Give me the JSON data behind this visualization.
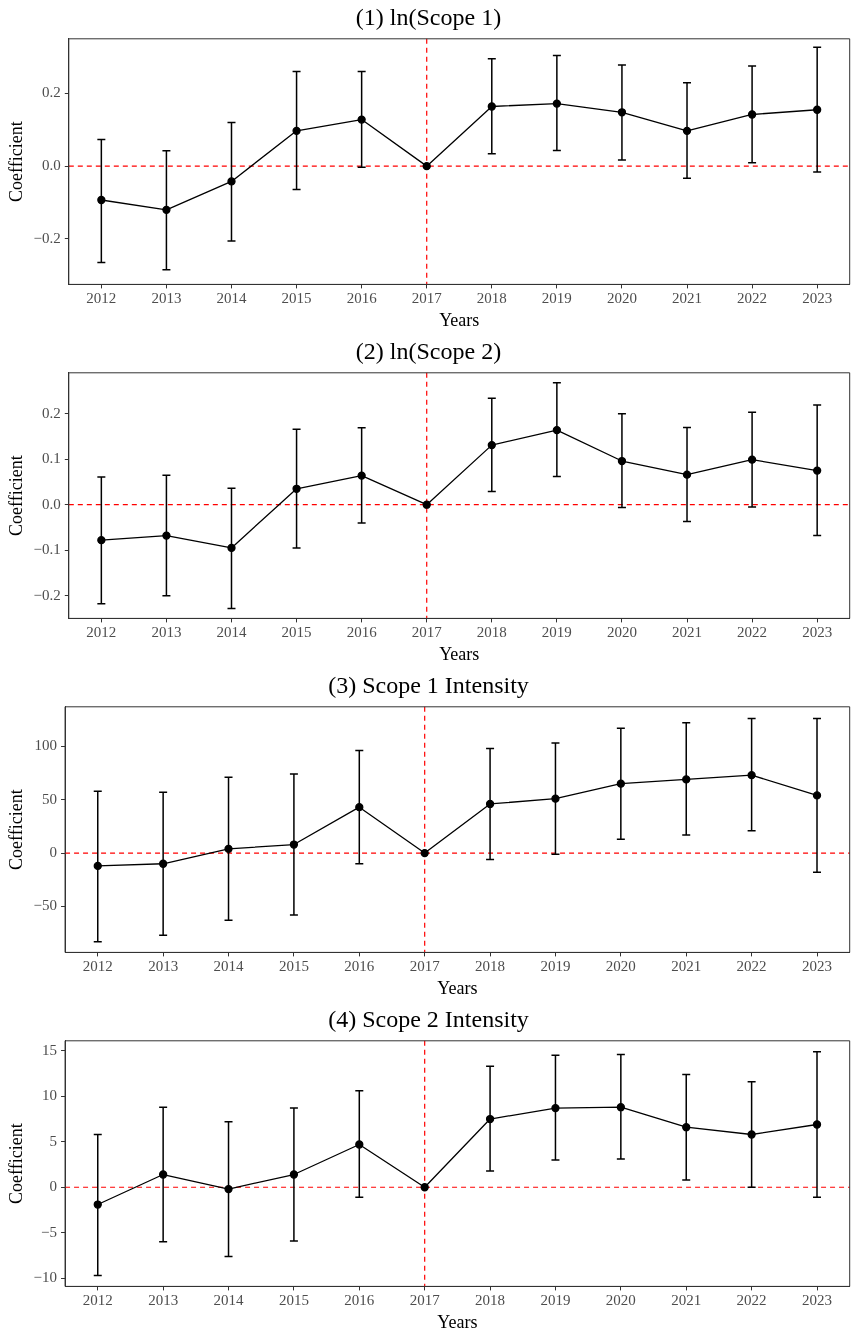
{
  "chart_data": [
    {
      "type": "line",
      "title": "(1) ln(Scope 1)",
      "xlabel": "Years",
      "ylabel": "Coefficient",
      "categories": [
        "2012",
        "2013",
        "2014",
        "2015",
        "2016",
        "2017",
        "2018",
        "2019",
        "2020",
        "2021",
        "2022",
        "2023"
      ],
      "series": [
        {
          "color": "#000000",
          "values": [
            -0.093,
            -0.12,
            -0.042,
            0.097,
            0.128,
            0,
            0.164,
            0.172,
            0.148,
            0.097,
            0.142,
            0.155
          ],
          "errors": [
            [
              -0.265,
              0.073
            ],
            [
              -0.285,
              0.042
            ],
            [
              -0.206,
              0.12
            ],
            [
              -0.064,
              0.26
            ],
            [
              -0.003,
              0.26
            ],
            null,
            [
              0.034,
              0.295
            ],
            [
              0.043,
              0.304
            ],
            [
              0.017,
              0.278
            ],
            [
              -0.033,
              0.229
            ],
            [
              0.009,
              0.275
            ],
            [
              -0.016,
              0.327
            ]
          ]
        }
      ],
      "ylim": [
        -0.325,
        0.35
      ],
      "yticks": [
        {
          "value": -0.2,
          "label": "−0.2"
        },
        {
          "value": 0,
          "label": "0.0"
        },
        0.2
      ],
      "ref_lines": [
        {
          "axis": "y",
          "value": 0,
          "color": "#ff0000",
          "line_style": "dashed"
        },
        {
          "axis": "x",
          "value": "2017",
          "color": "#ff0000",
          "line_style": "dashed"
        }
      ],
      "grid": false,
      "legend": false,
      "marker": "circle",
      "line_style": "solid"
    },
    {
      "type": "line",
      "title": "(2) ln(Scope 2)",
      "xlabel": "Years",
      "ylabel": "Coefficient",
      "categories": [
        "2012",
        "2013",
        "2014",
        "2015",
        "2016",
        "2017",
        "2018",
        "2019",
        "2020",
        "2021",
        "2022",
        "2023"
      ],
      "series": [
        {
          "color": "#000000",
          "values": [
            -0.078,
            -0.068,
            -0.095,
            0.035,
            0.064,
            0,
            0.131,
            0.164,
            0.096,
            0.066,
            0.099,
            0.075
          ],
          "errors": [
            [
              -0.218,
              0.061
            ],
            [
              -0.2,
              0.065
            ],
            [
              -0.228,
              0.036
            ],
            [
              -0.095,
              0.166
            ],
            [
              -0.04,
              0.169
            ],
            null,
            [
              0.029,
              0.234
            ],
            [
              0.062,
              0.268
            ],
            [
              -0.006,
              0.2
            ],
            [
              -0.037,
              0.17
            ],
            [
              -0.005,
              0.203
            ],
            [
              -0.068,
              0.219
            ]
          ]
        }
      ],
      "ylim": [
        -0.25,
        0.29
      ],
      "yticks": [
        {
          "value": -0.2,
          "label": "−0.2"
        },
        {
          "value": -0.1,
          "label": "−0.1"
        },
        {
          "value": 0,
          "label": "0.0"
        },
        0.1,
        0.2
      ],
      "ref_lines": [
        {
          "axis": "y",
          "value": 0,
          "color": "#ff0000",
          "line_style": "dashed"
        },
        {
          "axis": "x",
          "value": "2017",
          "color": "#ff0000",
          "line_style": "dashed"
        }
      ],
      "grid": false,
      "legend": false,
      "marker": "circle",
      "line_style": "solid"
    },
    {
      "type": "line",
      "title": "(3) Scope 1 Intensity",
      "xlabel": "Years",
      "ylabel": "Coefficient",
      "categories": [
        "2012",
        "2013",
        "2014",
        "2015",
        "2016",
        "2017",
        "2018",
        "2019",
        "2020",
        "2021",
        "2022",
        "2023"
      ],
      "series": [
        {
          "color": "#000000",
          "values": [
            -12,
            -10,
            4,
            8,
            43,
            0,
            46,
            51,
            65,
            69,
            73,
            54
          ],
          "errors": [
            [
              -83,
              58
            ],
            [
              -77,
              57
            ],
            [
              -63,
              71
            ],
            [
              -58,
              74
            ],
            [
              -10,
              96
            ],
            null,
            [
              -6,
              98
            ],
            [
              -1,
              103
            ],
            [
              13,
              117
            ],
            [
              17,
              122
            ],
            [
              21,
              126
            ],
            [
              -18,
              126
            ]
          ]
        }
      ],
      "ylim": [
        -93,
        137
      ],
      "yticks": [
        {
          "value": -50,
          "label": "−50"
        },
        0,
        50,
        100
      ],
      "ref_lines": [
        {
          "axis": "y",
          "value": 0,
          "color": "#ff0000",
          "line_style": "dashed"
        },
        {
          "axis": "x",
          "value": "2017",
          "color": "#ff0000",
          "line_style": "dashed"
        }
      ],
      "grid": false,
      "legend": false,
      "marker": "circle",
      "line_style": "solid"
    },
    {
      "type": "line",
      "title": "(4) Scope 2 Intensity",
      "xlabel": "Years",
      "ylabel": "Coefficient",
      "categories": [
        "2012",
        "2013",
        "2014",
        "2015",
        "2016",
        "2017",
        "2018",
        "2019",
        "2020",
        "2021",
        "2022",
        "2023"
      ],
      "series": [
        {
          "color": "#000000",
          "values": [
            -1.9,
            1.4,
            -0.2,
            1.4,
            4.7,
            0,
            7.5,
            8.7,
            8.8,
            6.6,
            5.8,
            6.9
          ],
          "errors": [
            [
              -9.7,
              5.8
            ],
            [
              -6.0,
              8.8
            ],
            [
              -7.6,
              7.2
            ],
            [
              -5.9,
              8.7
            ],
            [
              -1.1,
              10.6
            ],
            null,
            [
              1.8,
              13.3
            ],
            [
              3.0,
              14.5
            ],
            [
              3.1,
              14.6
            ],
            [
              0.8,
              12.4
            ],
            [
              0.0,
              11.6
            ],
            [
              -1.1,
              14.9
            ]
          ]
        }
      ],
      "ylim": [
        -10.9,
        16.1
      ],
      "yticks": [
        {
          "value": -10,
          "label": "−10"
        },
        {
          "value": -5,
          "label": "−5"
        },
        0,
        5,
        10,
        15
      ],
      "ref_lines": [
        {
          "axis": "y",
          "value": 0,
          "color": "#ff0000",
          "line_style": "dashed"
        },
        {
          "axis": "x",
          "value": "2017",
          "color": "#ff0000",
          "line_style": "dashed"
        }
      ],
      "grid": false,
      "legend": false,
      "marker": "circle",
      "line_style": "solid"
    }
  ]
}
